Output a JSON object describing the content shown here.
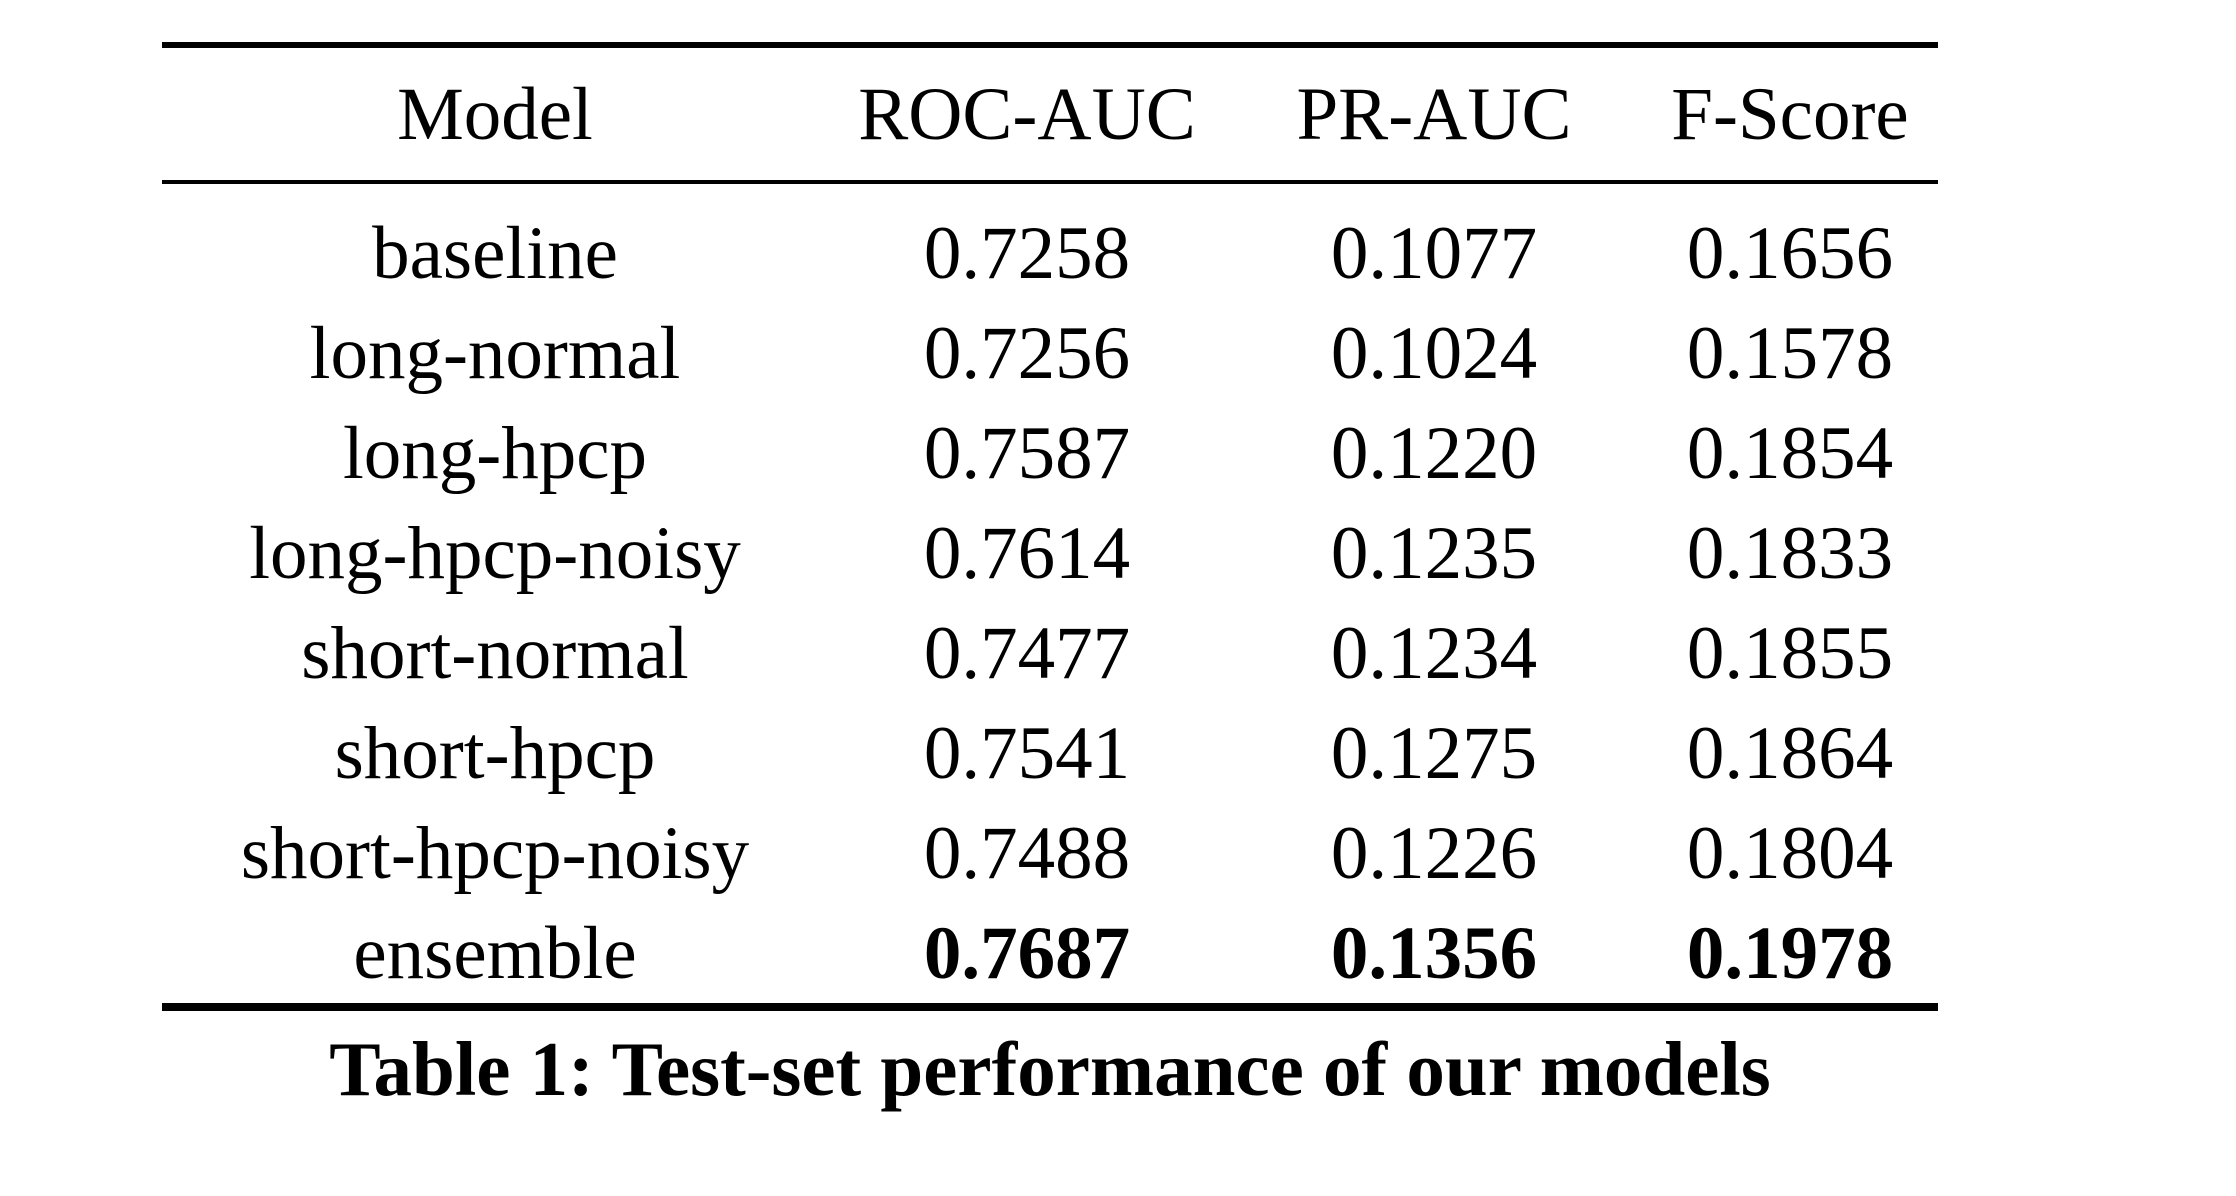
{
  "page": {
    "background_color": "#ffffff",
    "text_color": "#000000",
    "rule_color": "#000000"
  },
  "table": {
    "headers": [
      "Model",
      "ROC-AUC",
      "PR-AUC",
      "F-Score"
    ],
    "rows": [
      {
        "model": "baseline",
        "roc_auc": "0.7258",
        "pr_auc": "0.1077",
        "f_score": "0.1656",
        "bold_values": false
      },
      {
        "model": "long-normal",
        "roc_auc": "0.7256",
        "pr_auc": "0.1024",
        "f_score": "0.1578",
        "bold_values": false
      },
      {
        "model": "long-hpcp",
        "roc_auc": "0.7587",
        "pr_auc": "0.1220",
        "f_score": "0.1854",
        "bold_values": false
      },
      {
        "model": "long-hpcp-noisy",
        "roc_auc": "0.7614",
        "pr_auc": "0.1235",
        "f_score": "0.1833",
        "bold_values": false
      },
      {
        "model": "short-normal",
        "roc_auc": "0.7477",
        "pr_auc": "0.1234",
        "f_score": "0.1855",
        "bold_values": false
      },
      {
        "model": "short-hpcp",
        "roc_auc": "0.7541",
        "pr_auc": "0.1275",
        "f_score": "0.1864",
        "bold_values": false
      },
      {
        "model": "short-hpcp-noisy",
        "roc_auc": "0.7488",
        "pr_auc": "0.1226",
        "f_score": "0.1804",
        "bold_values": false
      },
      {
        "model": "ensemble",
        "roc_auc": "0.7687",
        "pr_auc": "0.1356",
        "f_score": "0.1978",
        "bold_values": true
      }
    ],
    "caption": "Table 1: Test-set performance of our models"
  },
  "chart_data": {
    "type": "table",
    "title": "Table 1: Test-set performance of our models",
    "columns": [
      "Model",
      "ROC-AUC",
      "PR-AUC",
      "F-Score"
    ],
    "categories": [
      "baseline",
      "long-normal",
      "long-hpcp",
      "long-hpcp-noisy",
      "short-normal",
      "short-hpcp",
      "short-hpcp-noisy",
      "ensemble"
    ],
    "series": [
      {
        "name": "ROC-AUC",
        "values": [
          0.7258,
          0.7256,
          0.7587,
          0.7614,
          0.7477,
          0.7541,
          0.7488,
          0.7687
        ]
      },
      {
        "name": "PR-AUC",
        "values": [
          0.1077,
          0.1024,
          0.122,
          0.1235,
          0.1234,
          0.1275,
          0.1226,
          0.1356
        ]
      },
      {
        "name": "F-Score",
        "values": [
          0.1656,
          0.1578,
          0.1854,
          0.1833,
          0.1855,
          0.1864,
          0.1804,
          0.1978
        ]
      }
    ],
    "bold_row": "ensemble",
    "layout": "booktabs table, thick top/bottom rules, thin header rule, bold caption below"
  }
}
